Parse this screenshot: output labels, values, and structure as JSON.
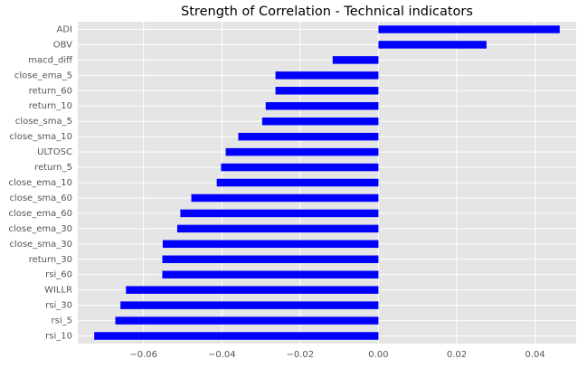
{
  "chart_data": {
    "type": "bar",
    "orientation": "horizontal",
    "title": "Strength of Correlation - Technical indicators",
    "xlabel": "",
    "ylabel": "",
    "categories": [
      "ADI",
      "OBV",
      "macd_diff",
      "close_ema_5",
      "return_60",
      "return_10",
      "close_sma_5",
      "close_sma_10",
      "ULTOSC",
      "return_5",
      "close_ema_10",
      "close_sma_60",
      "close_ema_60",
      "close_ema_30",
      "close_sma_30",
      "return_30",
      "rsi_60",
      "WILLR",
      "rsi_30",
      "rsi_5",
      "rsi_10"
    ],
    "values": [
      0.0463,
      0.0276,
      -0.0117,
      -0.0263,
      -0.0263,
      -0.0288,
      -0.0297,
      -0.0358,
      -0.039,
      -0.0402,
      -0.0413,
      -0.0478,
      -0.0506,
      -0.0514,
      -0.0551,
      -0.0552,
      -0.0552,
      -0.0645,
      -0.0659,
      -0.0672,
      -0.0726
    ],
    "xticks": [
      "−0.06",
      "−0.04",
      "−0.02",
      "0.00",
      "0.02",
      "0.04"
    ],
    "xtick_values": [
      -0.06,
      -0.04,
      -0.02,
      0.0,
      0.02,
      0.04
    ],
    "xlim": [
      -0.0768,
      0.0505
    ],
    "grid": true,
    "legend": "none",
    "colors": {
      "bar": "#0000ff",
      "plot_background": "#e5e5e5",
      "grid": "#ffffff",
      "page_background": "#ffffff"
    }
  }
}
